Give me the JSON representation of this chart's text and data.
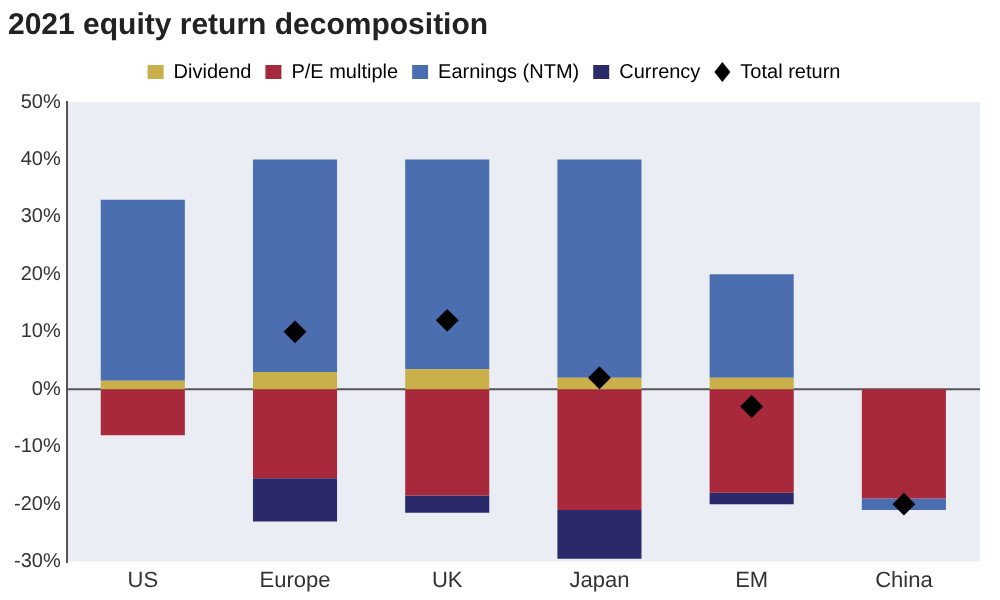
{
  "chart_data": {
    "type": "bar",
    "title": "2021 equity return decomposition",
    "categories": [
      "US",
      "Europe",
      "UK",
      "Japan",
      "EM",
      "China"
    ],
    "stacked": true,
    "legend": "top",
    "grid": false,
    "ref_lines": [
      {
        "axis": "y",
        "value": 0,
        "color": "#555555"
      }
    ],
    "series": [
      {
        "name": "Dividend",
        "color": "#c9b04a",
        "values": [
          1.5,
          3,
          3.5,
          2,
          2,
          null
        ]
      },
      {
        "name": "P/E multiple",
        "color": "#a8283c",
        "values": [
          -8,
          -15.5,
          -18.5,
          -21,
          -18,
          -19
        ]
      },
      {
        "name": "Earnings (NTM)",
        "color": "#4a6eb0",
        "values": [
          31.5,
          37,
          36.5,
          38,
          18,
          -2
        ]
      },
      {
        "name": "Currency",
        "color": "#2a2a6a",
        "values": [
          null,
          -7.5,
          -3,
          -8.5,
          -2,
          null
        ]
      },
      {
        "name": "Total return",
        "type": "scatter",
        "marker": "diamond",
        "color": "#000000",
        "x": [
          "US",
          "Europe",
          "UK",
          "Japan",
          "EM",
          "China"
        ],
        "values": [
          null,
          10,
          12,
          2,
          -3,
          -20
        ]
      }
    ],
    "ylim": [
      -30,
      50
    ],
    "yticks": [
      {
        "value": -30,
        "label": "-30%"
      },
      {
        "value": -20,
        "label": "-20%"
      },
      {
        "value": -10,
        "label": "-10%"
      },
      {
        "value": 0,
        "label": "0%"
      },
      {
        "value": 10,
        "label": "10%"
      },
      {
        "value": 20,
        "label": "20%"
      },
      {
        "value": 30,
        "label": "30%"
      },
      {
        "value": 40,
        "label": "40%"
      },
      {
        "value": 50,
        "label": "50%"
      }
    ]
  }
}
